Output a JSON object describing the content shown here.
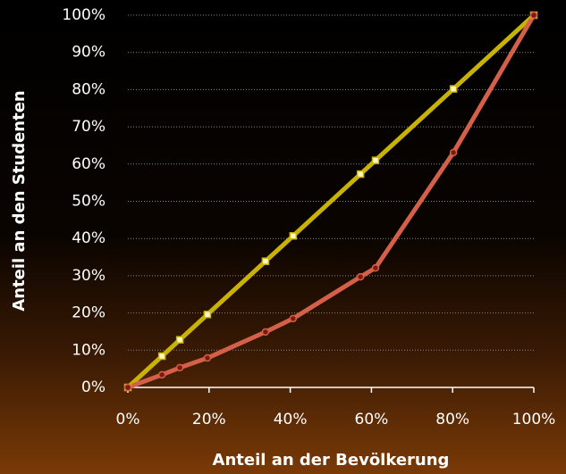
{
  "chart_data": {
    "type": "line",
    "xlabel": "Anteil an der Bevölkerung",
    "ylabel": "Anteil an den Studenten",
    "xlim": [
      0,
      100
    ],
    "ylim": [
      0,
      100
    ],
    "xticks": [
      {
        "value": 0,
        "label": "0%"
      },
      {
        "value": 20,
        "label": "20%"
      },
      {
        "value": 40,
        "label": "40%"
      },
      {
        "value": 60,
        "label": "60%"
      },
      {
        "value": 80,
        "label": "80%"
      },
      {
        "value": 100,
        "label": "100%"
      }
    ],
    "yticks": [
      {
        "value": 0,
        "label": "0%"
      },
      {
        "value": 10,
        "label": "10%"
      },
      {
        "value": 20,
        "label": "20%"
      },
      {
        "value": 30,
        "label": "30%"
      },
      {
        "value": 40,
        "label": "40%"
      },
      {
        "value": 50,
        "label": "50%"
      },
      {
        "value": 60,
        "label": "60%"
      },
      {
        "value": 70,
        "label": "70%"
      },
      {
        "value": 80,
        "label": "80%"
      },
      {
        "value": 90,
        "label": "90%"
      },
      {
        "value": 100,
        "label": "100%"
      }
    ],
    "grid": true,
    "x": [
      0,
      8.4,
      12.8,
      19.6,
      33.9,
      40.7,
      57.3,
      61.0,
      80.2,
      100
    ],
    "series": [
      {
        "color": "#c9b300",
        "marker": "square",
        "values": [
          0,
          8.4,
          12.8,
          19.6,
          33.9,
          40.7,
          57.3,
          61.0,
          80.2,
          100
        ]
      },
      {
        "color": "#d5604a",
        "marker": "circle",
        "values": [
          0,
          3.4,
          5.3,
          7.9,
          14.9,
          18.5,
          29.7,
          32.1,
          63.1,
          100
        ]
      }
    ]
  }
}
